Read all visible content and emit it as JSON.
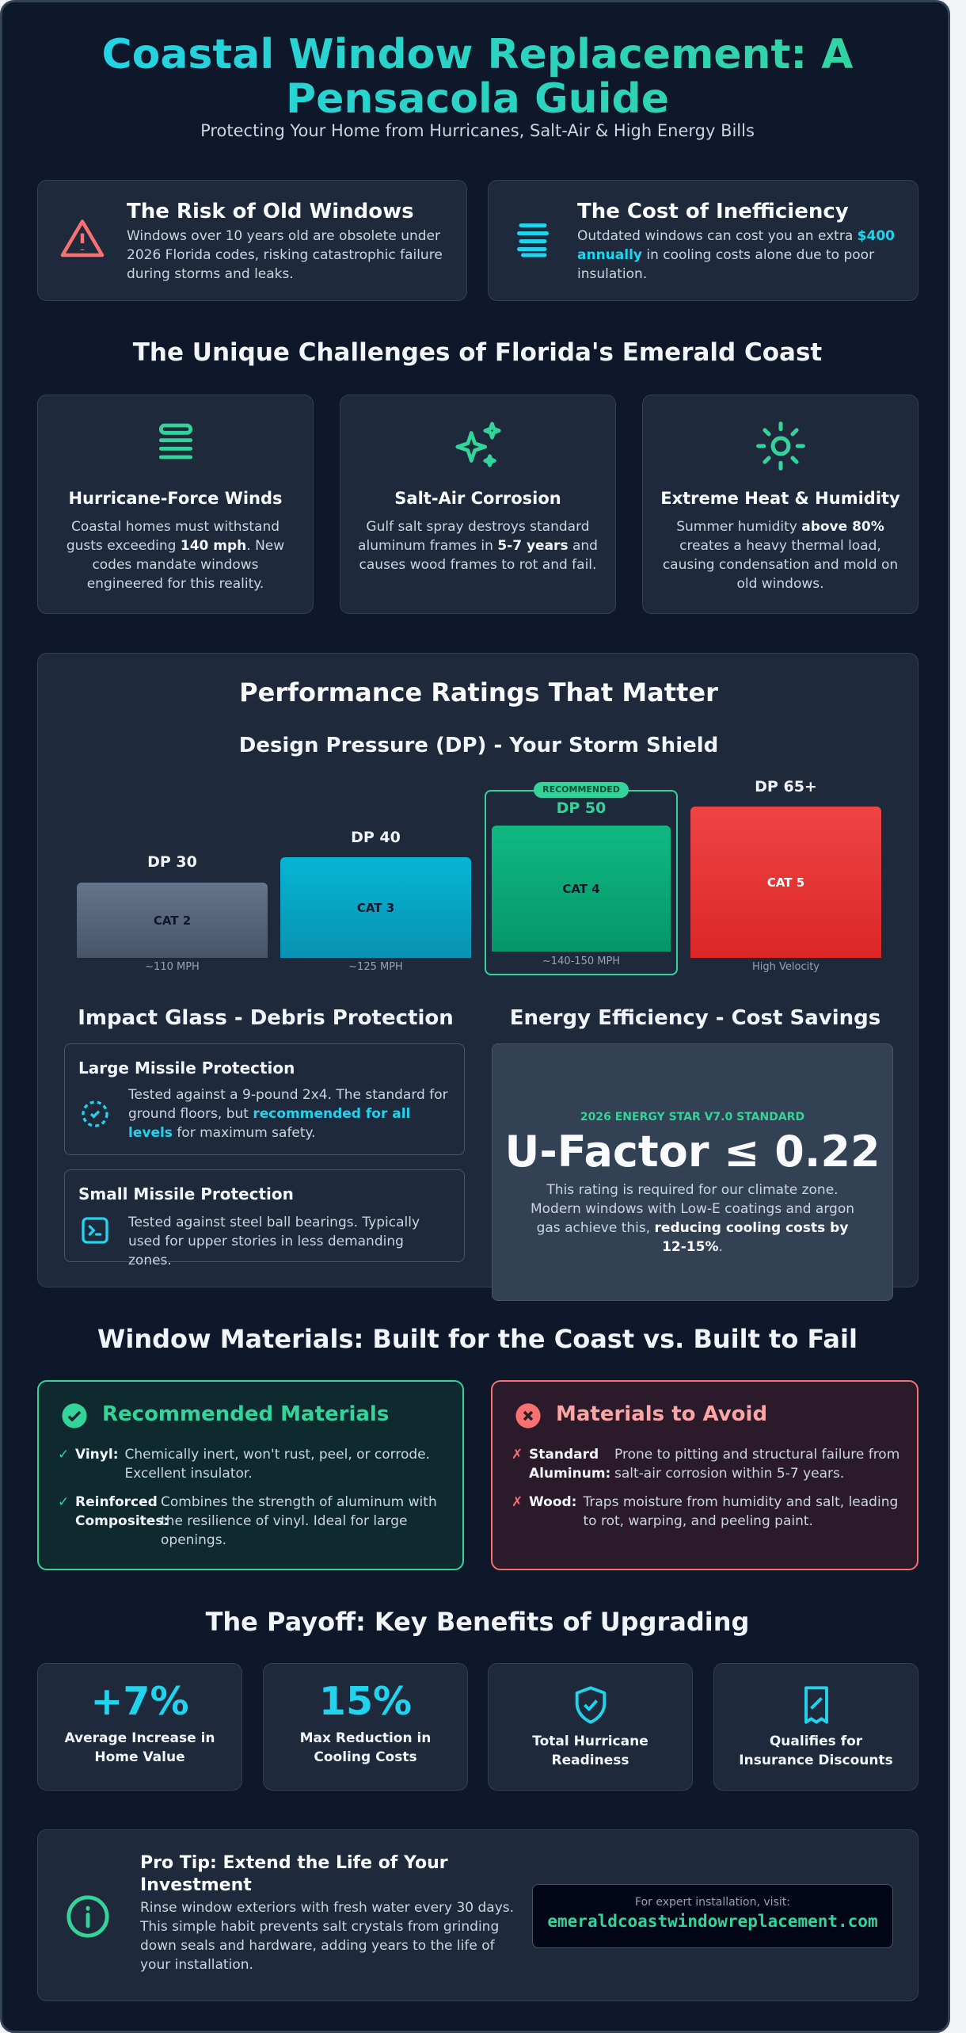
{
  "header": {
    "title": "Coastal Window Replacement: A Pensacola Guide",
    "subtitle": "Protecting Your Home from Hurricanes, Salt-Air & High Energy Bills"
  },
  "intro_cards": [
    {
      "title": "The Risk of Old Windows",
      "body": [
        "Windows over 10 years old are obsolete under 2026 Florida codes, risking catastrophic failure during storms and leaks."
      ]
    },
    {
      "title": "The Cost of Inefficiency",
      "body": [
        "Outdated windows can cost you an extra ",
        "$400 annually",
        " in cooling costs alone due to poor insulation."
      ]
    }
  ],
  "challenges": {
    "heading": "The Unique Challenges of Florida's Emerald Coast",
    "cards": [
      {
        "title": "Hurricane-Force Winds",
        "body": [
          "Coastal homes must withstand gusts exceeding ",
          "140 mph",
          ". New codes mandate windows engineered for this reality."
        ]
      },
      {
        "title": "Salt-Air Corrosion",
        "body": [
          "Gulf salt spray destroys standard aluminum frames in ",
          "5-7 years",
          " and causes wood frames to rot and fail."
        ]
      },
      {
        "title": "Extreme Heat & Humidity",
        "body": [
          "Summer humidity ",
          "above 80%",
          " creates a heavy thermal load, causing condensation and mold on old windows."
        ]
      }
    ]
  },
  "performance": {
    "heading": "Performance Ratings That Matter",
    "design_pressure": {
      "heading": "Design Pressure (DP) - Your Storm Shield",
      "badge": "RECOMMENDED",
      "bars": [
        {
          "label": "DP 30",
          "category": "CAT 2",
          "speed": "~110 MPH"
        },
        {
          "label": "DP 40",
          "category": "CAT 3",
          "speed": "~125 MPH"
        },
        {
          "label": "DP 50",
          "category": "CAT 4",
          "speed": "~140-150 MPH"
        },
        {
          "label": "DP 65+",
          "category": "CAT 5",
          "speed": "High Velocity"
        }
      ]
    },
    "impact_glass": {
      "heading": "Impact Glass - Debris Protection",
      "cards": [
        {
          "title": "Large Missile Protection",
          "body": [
            "Tested against a 9-pound 2x4. The standard for ground floors, but ",
            "recommended for all levels",
            " for maximum safety."
          ]
        },
        {
          "title": "Small Missile Protection",
          "body": [
            "Tested against steel ball bearings. Typically used for upper stories in less demanding zones."
          ]
        }
      ]
    },
    "energy": {
      "heading": "Energy Efficiency - Cost Savings",
      "standard": "2026 ENERGY STAR V7.0 STANDARD",
      "value": "U-Factor ≤ 0.22",
      "body": [
        "This rating is required for our climate zone. Modern windows with Low-E coatings and argon gas achieve this, ",
        "reducing cooling costs by 12-15%",
        "."
      ]
    }
  },
  "materials": {
    "heading": "Window Materials: Built for the Coast vs. Built to Fail",
    "recommended": {
      "title": "Recommended Materials",
      "items": [
        {
          "term": "Vinyl:",
          "desc": "Chemically inert, won't rust, peel, or corrode. Excellent insulator."
        },
        {
          "term": "Reinforced Composites:",
          "desc": "Combines the strength of aluminum with the resilience of vinyl. Ideal for large openings."
        }
      ]
    },
    "avoid": {
      "title": "Materials to Avoid",
      "items": [
        {
          "term": "Standard Aluminum:",
          "desc": "Prone to pitting and structural failure from salt-air corrosion within 5-7 years."
        },
        {
          "term": "Wood:",
          "desc": "Traps moisture from humidity and salt, leading to rot, warping, and peeling paint."
        }
      ]
    }
  },
  "benefits": {
    "heading": "The Payoff: Key Benefits of Upgrading",
    "cards": [
      {
        "stat": "+7%",
        "label": "Average Increase in Home Value"
      },
      {
        "stat": "15%",
        "label": "Max Reduction in Cooling Costs"
      },
      {
        "label": "Total Hurricane Readiness"
      },
      {
        "label": "Qualifies for Insurance Discounts"
      }
    ]
  },
  "pro_tip": {
    "title": "Pro Tip: Extend the Life of Your Investment",
    "body": "Rinse window exteriors with fresh water every 30 days. This simple habit prevents salt crystals from grinding down seals and hardware, adding years to the life of your installation.",
    "url_caption": "For expert installation, visit:",
    "url": "emeraldcoastwindowreplacement.com"
  }
}
